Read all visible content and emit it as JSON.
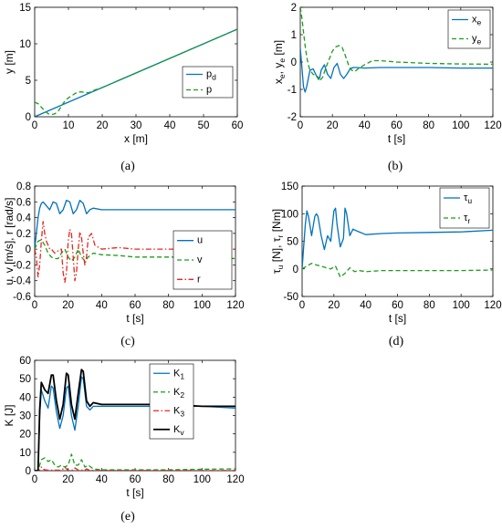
{
  "colors": {
    "blue": "#0072bd",
    "green": "#1a9e1a",
    "red": "#e8251e",
    "black": "#000000"
  },
  "chart_data": [
    {
      "type": "line",
      "caption": "(a)",
      "xlabel": "x [m]",
      "ylabel": "y [m]",
      "xlim": [
        0,
        60
      ],
      "ylim": [
        0,
        15
      ],
      "xticks": [
        0,
        10,
        20,
        30,
        40,
        50,
        60
      ],
      "yticks": [
        0,
        5,
        10,
        15
      ],
      "legend_position": "right",
      "series": [
        {
          "name": "p",
          "sub": "d",
          "color": "blue",
          "dash": "solid",
          "x": [
            0,
            60
          ],
          "y": [
            0,
            12
          ]
        },
        {
          "name": "p",
          "sub": "",
          "color": "green",
          "dash": "dashed",
          "x": [
            0,
            1,
            2,
            3,
            4,
            5,
            6,
            7,
            8,
            9,
            10,
            11,
            12,
            13,
            14,
            15,
            16,
            17,
            18,
            20,
            25,
            30,
            40,
            50,
            60
          ],
          "y": [
            2.0,
            1.8,
            1.3,
            0.8,
            0.4,
            0.3,
            0.4,
            0.8,
            1.5,
            2.2,
            2.6,
            2.9,
            3.2,
            3.4,
            3.4,
            3.3,
            3.3,
            3.5,
            3.7,
            4.0,
            5.0,
            6.0,
            8.0,
            10.0,
            12.0
          ]
        }
      ]
    },
    {
      "type": "line",
      "caption": "(b)",
      "xlabel": "t [s]",
      "ylabel": "x",
      "ylabel_sub1": "e",
      "ylabel_mid": ", y",
      "ylabel_sub2": "e",
      "ylabel_unit": " [m]",
      "xlim": [
        0,
        120
      ],
      "ylim": [
        -2,
        2
      ],
      "xticks": [
        0,
        20,
        40,
        60,
        80,
        100,
        120
      ],
      "yticks": [
        -2,
        -1,
        0,
        1,
        2
      ],
      "legend_position": "top-right",
      "series": [
        {
          "name": "x",
          "sub": "e",
          "color": "blue",
          "dash": "solid",
          "x": [
            0,
            1,
            2,
            3,
            4,
            5,
            6,
            8,
            10,
            12,
            13,
            15,
            17,
            19,
            21,
            23,
            25,
            27,
            29,
            31,
            33,
            35,
            40,
            50,
            60,
            80,
            100,
            120
          ],
          "y": [
            0.5,
            -0.2,
            -0.9,
            -1.1,
            -0.9,
            -0.6,
            -0.3,
            -0.25,
            -0.5,
            -0.6,
            -0.3,
            -0.1,
            -0.45,
            -0.6,
            -0.2,
            -0.05,
            -0.45,
            -0.6,
            -0.45,
            -0.25,
            -0.2,
            -0.2,
            -0.22,
            -0.2,
            -0.2,
            -0.2,
            -0.22,
            -0.22
          ]
        },
        {
          "name": "y",
          "sub": "e",
          "color": "green",
          "dash": "dashed",
          "x": [
            0,
            1,
            2,
            3,
            4,
            5,
            6,
            8,
            10,
            12,
            14,
            16,
            18,
            20,
            22,
            24,
            26,
            28,
            30,
            32,
            34,
            36,
            40,
            45,
            50,
            60,
            80,
            100,
            120
          ],
          "y": [
            2.0,
            1.6,
            1.1,
            0.6,
            0.2,
            -0.1,
            -0.3,
            -0.45,
            -0.5,
            -0.7,
            -0.55,
            -0.2,
            0.1,
            0.4,
            0.55,
            0.6,
            0.55,
            0.25,
            -0.1,
            -0.3,
            -0.35,
            -0.25,
            -0.1,
            0.05,
            0.05,
            0.0,
            -0.05,
            -0.07,
            -0.08
          ]
        }
      ]
    },
    {
      "type": "line",
      "caption": "(c)",
      "xlabel": "t [s]",
      "ylabel": "u, v [m/s], r [rad/s]",
      "xlim": [
        0,
        120
      ],
      "ylim": [
        -0.6,
        0.8
      ],
      "xticks": [
        0,
        20,
        40,
        60,
        80,
        100,
        120
      ],
      "yticks": [
        -0.6,
        -0.4,
        -0.2,
        0,
        0.2,
        0.4,
        0.6,
        0.8
      ],
      "legend_position": "bottom-right",
      "series": [
        {
          "name": "u",
          "sub": "",
          "color": "blue",
          "dash": "solid",
          "x": [
            0,
            1,
            2,
            3,
            4,
            5,
            7,
            9,
            11,
            13,
            15,
            17,
            19,
            21,
            23,
            25,
            27,
            29,
            31,
            33,
            35,
            40,
            50,
            60,
            80,
            100,
            120
          ],
          "y": [
            0,
            0.2,
            0.4,
            0.52,
            0.58,
            0.6,
            0.55,
            0.5,
            0.6,
            0.58,
            0.45,
            0.5,
            0.62,
            0.6,
            0.45,
            0.5,
            0.62,
            0.58,
            0.45,
            0.5,
            0.52,
            0.5,
            0.5,
            0.5,
            0.5,
            0.5,
            0.5
          ]
        },
        {
          "name": "v",
          "sub": "",
          "color": "green",
          "dash": "dashed",
          "x": [
            0,
            2,
            4,
            6,
            8,
            10,
            12,
            14,
            16,
            18,
            20,
            22,
            24,
            26,
            28,
            30,
            32,
            35,
            40,
            50,
            60,
            80,
            100,
            120
          ],
          "y": [
            0,
            0.1,
            0.12,
            0.05,
            -0.05,
            -0.1,
            -0.12,
            -0.12,
            -0.05,
            0.0,
            -0.1,
            -0.15,
            -0.1,
            0.0,
            -0.1,
            -0.15,
            -0.1,
            -0.05,
            -0.07,
            -0.08,
            -0.1,
            -0.1,
            -0.1,
            -0.12
          ]
        },
        {
          "name": "r",
          "sub": "",
          "color": "red",
          "dash": "dashdot",
          "x": [
            0,
            1,
            2,
            3,
            4,
            5,
            6,
            7,
            8,
            9,
            10,
            12,
            14,
            16,
            17,
            18,
            19,
            20,
            21,
            22,
            23,
            24,
            25,
            26,
            27,
            28,
            29,
            30,
            31,
            32,
            34,
            36,
            40,
            50,
            60,
            80,
            100,
            120
          ],
          "y": [
            0,
            -0.1,
            -0.35,
            -0.2,
            0.1,
            0.35,
            0.2,
            0.1,
            0.05,
            0.0,
            0.0,
            -0.05,
            -0.02,
            0.0,
            -0.3,
            -0.42,
            -0.3,
            0.1,
            0.25,
            0.2,
            -0.1,
            -0.4,
            -0.3,
            0.0,
            0.22,
            0.15,
            -0.05,
            -0.2,
            -0.1,
            0.15,
            0.2,
            0.05,
            0.0,
            0.02,
            0.0,
            0.0,
            0.0,
            0.0
          ]
        }
      ]
    },
    {
      "type": "line",
      "caption": "(d)",
      "xlabel": "t [s]",
      "ylabel": "τ",
      "ylabel_sub1": "u",
      "ylabel_mid": " [N], τ",
      "ylabel_sub2": "r",
      "ylabel_unit": " [Nm]",
      "xlim": [
        0,
        120
      ],
      "ylim": [
        -50,
        150
      ],
      "xticks": [
        0,
        20,
        40,
        60,
        80,
        100,
        120
      ],
      "yticks": [
        -50,
        0,
        50,
        100,
        150
      ],
      "legend_position": "top-right",
      "series": [
        {
          "name": "τ",
          "sub": "u",
          "color": "blue",
          "dash": "solid",
          "x": [
            0,
            1,
            2,
            3,
            4,
            6,
            8,
            9,
            10,
            12,
            14,
            16,
            18,
            20,
            21,
            22,
            24,
            26,
            27,
            28,
            30,
            32,
            35,
            40,
            50,
            60,
            80,
            100,
            120
          ],
          "y": [
            0,
            40,
            80,
            105,
            95,
            60,
            95,
            100,
            95,
            60,
            35,
            60,
            50,
            105,
            110,
            80,
            40,
            55,
            110,
            100,
            60,
            72,
            68,
            62,
            64,
            65,
            66,
            67,
            70
          ]
        },
        {
          "name": "τ",
          "sub": "r",
          "color": "green",
          "dash": "dashed",
          "x": [
            0,
            3,
            6,
            9,
            12,
            15,
            18,
            21,
            24,
            27,
            30,
            33,
            36,
            40,
            50,
            60,
            80,
            100,
            120
          ],
          "y": [
            0,
            5,
            10,
            7,
            5,
            2,
            0,
            5,
            -15,
            -8,
            2,
            -5,
            -3,
            -5,
            -3,
            -3,
            -3,
            -3,
            -2
          ]
        }
      ]
    },
    {
      "type": "line",
      "caption": "(e)",
      "xlabel": "t [s]",
      "ylabel": "K [J]",
      "xlim": [
        0,
        120
      ],
      "ylim": [
        0,
        60
      ],
      "xticks": [
        0,
        20,
        40,
        60,
        80,
        100,
        120
      ],
      "yticks": [
        0,
        10,
        20,
        30,
        40,
        50,
        60
      ],
      "legend_position": "top-right",
      "series": [
        {
          "name": "K",
          "sub": "1",
          "color": "blue",
          "dash": "solid",
          "x": [
            0,
            2,
            3,
            4,
            6,
            8,
            10,
            11,
            13,
            15,
            17,
            19,
            20,
            22,
            24,
            26,
            28,
            29,
            31,
            33,
            35,
            40,
            50,
            60,
            80,
            100,
            120
          ],
          "y": [
            0,
            0,
            30,
            44,
            38,
            34,
            46,
            45,
            32,
            23,
            30,
            45,
            46,
            30,
            22,
            35,
            51,
            50,
            35,
            33,
            35,
            35,
            35,
            35,
            35,
            35,
            34
          ]
        },
        {
          "name": "K",
          "sub": "2",
          "color": "green",
          "dash": "dashed",
          "x": [
            0,
            2,
            3,
            4,
            6,
            8,
            10,
            12,
            14,
            16,
            18,
            20,
            22,
            24,
            26,
            28,
            30,
            32,
            35,
            40,
            60,
            80,
            100,
            120
          ],
          "y": [
            0,
            0,
            3,
            6,
            7,
            5,
            6,
            3,
            2,
            3,
            2,
            3,
            9,
            3,
            3,
            6,
            2,
            3,
            1,
            0.5,
            0.5,
            0.5,
            0.8,
            1
          ]
        },
        {
          "name": "K",
          "sub": "3",
          "color": "red",
          "dash": "dashdot",
          "x": [
            0,
            2,
            3,
            4,
            5,
            6,
            8,
            10,
            15,
            17,
            18,
            19,
            20,
            23,
            24,
            25,
            26,
            30,
            31,
            32,
            33,
            40,
            120
          ],
          "y": [
            0,
            0,
            0.5,
            2,
            1,
            0.5,
            0.3,
            0.3,
            0.3,
            1,
            2,
            1,
            0.3,
            0.3,
            1.5,
            1,
            0.3,
            0.3,
            1,
            0.5,
            0.2,
            0.1,
            0.1
          ]
        },
        {
          "name": "K",
          "sub": "v",
          "color": "black",
          "dash": "solid",
          "x": [
            0,
            2,
            3,
            4,
            6,
            8,
            10,
            11,
            13,
            15,
            17,
            19,
            20,
            22,
            24,
            26,
            28,
            29,
            31,
            33,
            35,
            40,
            50,
            60,
            80,
            100,
            120
          ],
          "y": [
            0,
            0,
            33,
            48,
            44,
            42,
            52,
            52,
            38,
            28,
            36,
            53,
            52,
            36,
            28,
            42,
            55,
            54,
            38,
            35,
            37,
            36,
            36,
            36,
            36,
            35,
            35
          ]
        }
      ]
    }
  ]
}
